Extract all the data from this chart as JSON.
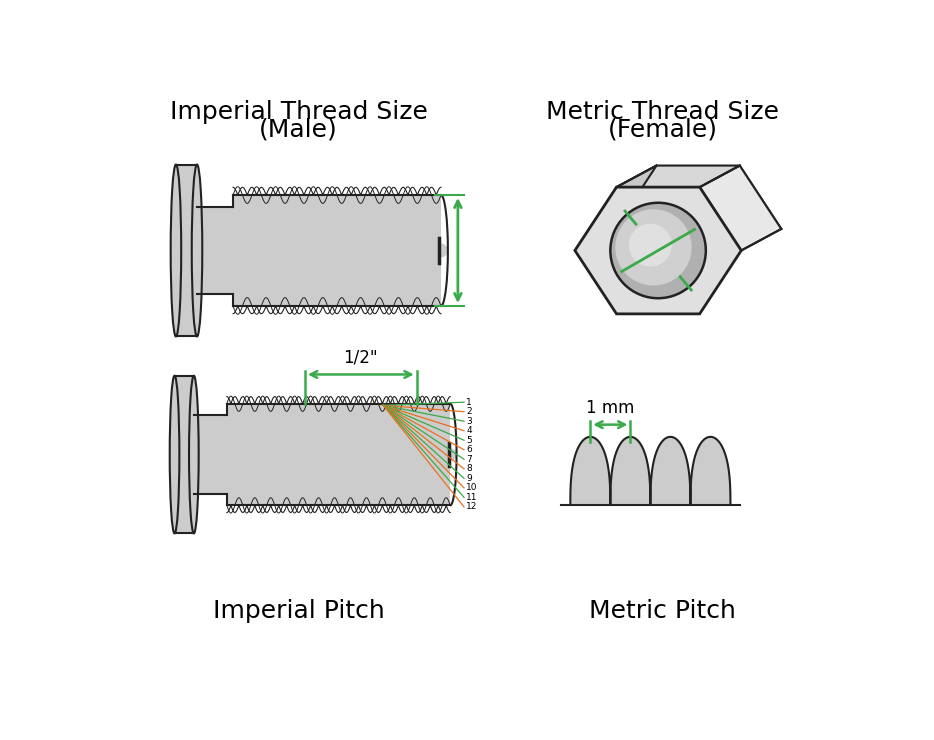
{
  "bg_color": "#ffffff",
  "line_color": "#222222",
  "gray_fill": "#cccccc",
  "gray_fill_light": "#e0e0e0",
  "gray_fill_dark": "#aaaaaa",
  "green_color": "#3aaa4a",
  "orange_color": "#e87020",
  "title_fontsize": 18,
  "pitch_label": "1/2\"",
  "mm_label": "1 mm",
  "thread_numbers": [
    "1",
    "2",
    "3",
    "4",
    "5",
    "6",
    "7",
    "8",
    "9",
    "10",
    "11",
    "12"
  ],
  "top_left_title_line1": "Imperial Thread Size",
  "top_left_title_line2": "(Male)",
  "top_right_title_line1": "Metric Thread Size",
  "top_right_title_line2": "(Female)",
  "bottom_left_title": "Imperial Pitch",
  "bottom_right_title": "Metric Pitch"
}
